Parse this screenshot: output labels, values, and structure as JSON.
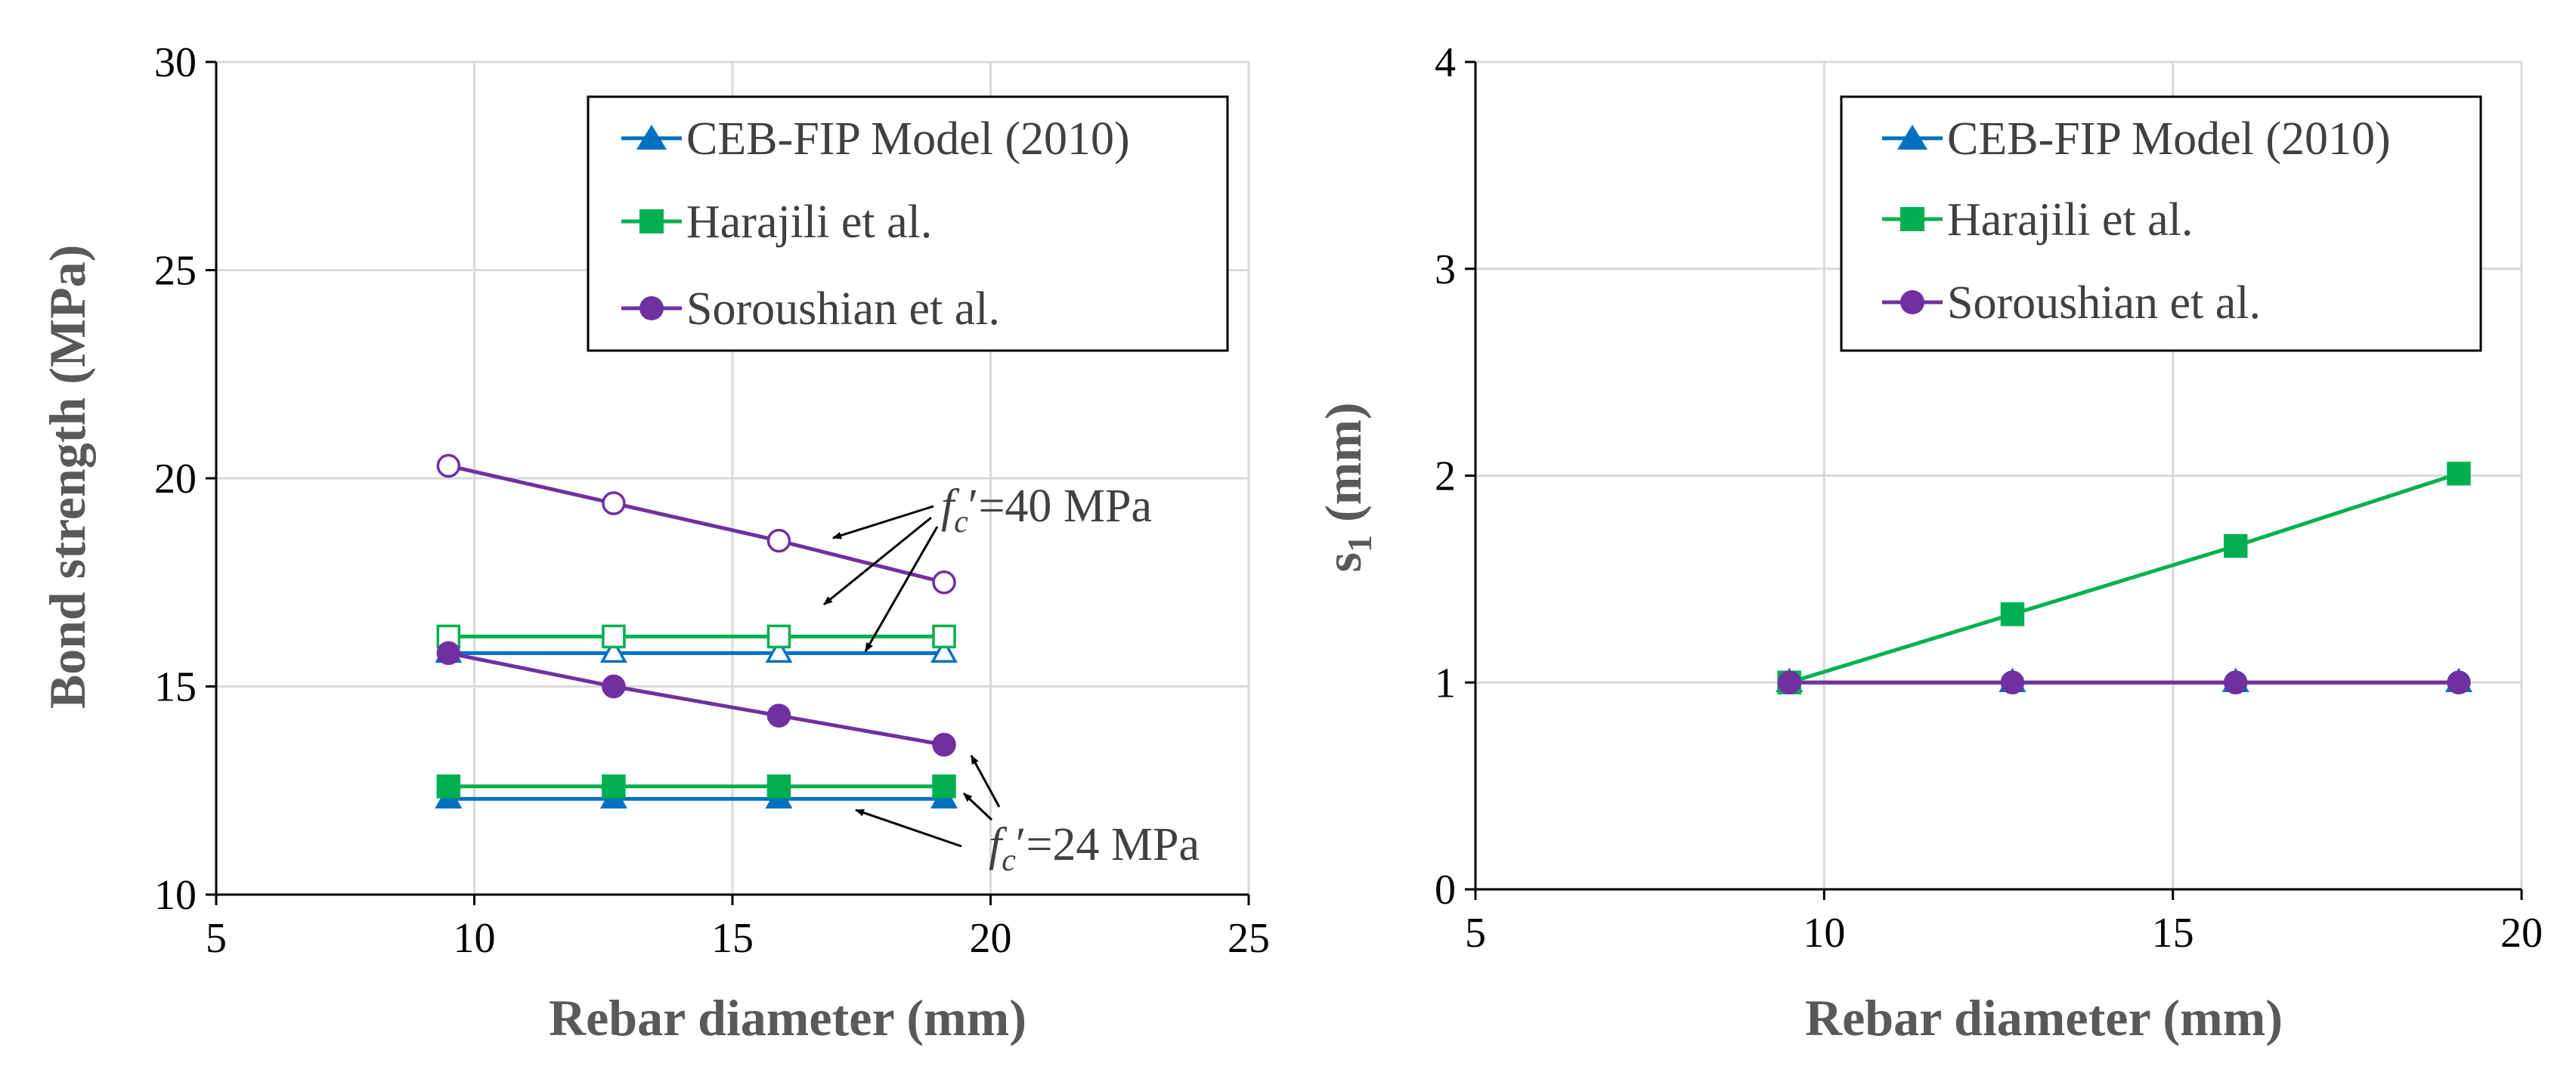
{
  "chart_data": [
    {
      "type": "line",
      "xlabel": "Rebar diameter (mm)",
      "ylabel": "Bond strength (MPa)",
      "xlim": [
        5,
        25
      ],
      "ylim": [
        10,
        30
      ],
      "xticks": [
        "5",
        "10",
        "15",
        "20",
        "25"
      ],
      "yticks": [
        "10",
        "15",
        "20",
        "25",
        "30"
      ],
      "grid": true,
      "legend_position": "top-right",
      "legend": [
        "CEB-FIP Model (2010)",
        "Harajili et al.",
        "Soroushian et al."
      ],
      "x": [
        9.5,
        12.7,
        15.9,
        19.1
      ],
      "series": [
        {
          "name": "CEB-FIP Model (2010)",
          "condition": "fc'=40 MPa",
          "marker": "triangle",
          "filled": false,
          "color": "#0070c0",
          "values": [
            15.8,
            15.8,
            15.8,
            15.8
          ]
        },
        {
          "name": "Harajili et al.",
          "condition": "fc'=40 MPa",
          "marker": "square",
          "filled": false,
          "color": "#00b050",
          "values": [
            16.2,
            16.2,
            16.2,
            16.2
          ]
        },
        {
          "name": "Soroushian et al.",
          "condition": "fc'=40 MPa",
          "marker": "circle",
          "filled": false,
          "color": "#7030a0",
          "values": [
            20.3,
            19.4,
            18.5,
            17.5
          ]
        },
        {
          "name": "CEB-FIP Model (2010)",
          "condition": "fc'=24 MPa",
          "marker": "triangle",
          "filled": true,
          "color": "#0070c0",
          "values": [
            12.3,
            12.3,
            12.3,
            12.3
          ]
        },
        {
          "name": "Harajili et al.",
          "condition": "fc'=24 MPa",
          "marker": "square",
          "filled": true,
          "color": "#00b050",
          "values": [
            12.6,
            12.6,
            12.6,
            12.6
          ]
        },
        {
          "name": "Soroushian et al.",
          "condition": "fc'=24 MPa",
          "marker": "circle",
          "filled": true,
          "color": "#7030a0",
          "values": [
            15.8,
            15.0,
            14.3,
            13.6
          ]
        }
      ],
      "annotations": [
        {
          "prefix": "f",
          "subscript": "c",
          "suffix": "′=40 MPa"
        },
        {
          "prefix": "f",
          "subscript": "c",
          "suffix": "′=24 MPa"
        }
      ]
    },
    {
      "type": "line",
      "xlabel": "Rebar diameter (mm)",
      "ylabel_main": "s",
      "ylabel_sub": "1",
      "ylabel_unit": " (mm)",
      "xlim": [
        5,
        20
      ],
      "ylim": [
        0,
        4
      ],
      "xticks": [
        "5",
        "10",
        "15",
        "20"
      ],
      "yticks": [
        "0",
        "1",
        "2",
        "3",
        "4"
      ],
      "grid": true,
      "legend_position": "top-right",
      "legend": [
        "CEB-FIP Model (2010)",
        "Harajili et al.",
        "Soroushian et al."
      ],
      "x": [
        9.5,
        12.7,
        15.9,
        19.1
      ],
      "series": [
        {
          "name": "CEB-FIP Model (2010)",
          "marker": "triangle",
          "filled": true,
          "color": "#0070c0",
          "values": [
            1.0,
            1.0,
            1.0,
            1.0
          ]
        },
        {
          "name": "Harajili et al.",
          "marker": "square",
          "filled": true,
          "color": "#00b050",
          "values": [
            1.0,
            1.33,
            1.66,
            2.01
          ]
        },
        {
          "name": "Soroushian et al.",
          "marker": "circle",
          "filled": true,
          "color": "#7030a0",
          "values": [
            1.0,
            1.0,
            1.0,
            1.0
          ]
        }
      ]
    }
  ]
}
